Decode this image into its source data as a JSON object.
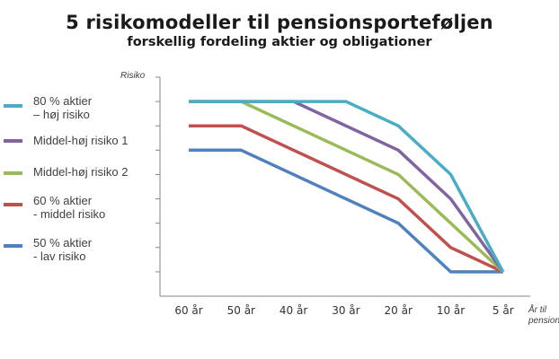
{
  "chart_data": {
    "type": "line",
    "title": "5 risikomodeller til pensionsporteføljen",
    "subtitle": "forskellig fordeling aktier og obligationer",
    "ylabel": "Risiko",
    "xlabel": [
      "År til",
      "pension"
    ],
    "categories": [
      "60 år",
      "50 år",
      "40 år",
      "30 år",
      "20 år",
      "10 år",
      "5 år"
    ],
    "ylim": [
      0,
      9
    ],
    "y_ticks": 9,
    "grid": false,
    "legend_position": "left",
    "series": [
      {
        "name": "80 % aktier\n – høj risiko",
        "color": "#4bacc6",
        "values": [
          8,
          8,
          8,
          8,
          7,
          5,
          1
        ]
      },
      {
        "name": "Middel-høj risiko 1",
        "color": "#8064a2",
        "values": [
          8,
          8,
          8,
          7,
          6,
          4,
          1
        ]
      },
      {
        "name": "Middel-høj risiko 2",
        "color": "#9bbb59",
        "values": [
          8,
          8,
          7,
          6,
          5,
          3,
          1
        ]
      },
      {
        "name": "60 % aktier\n - middel risiko",
        "color": "#c0504d",
        "values": [
          7,
          7,
          6,
          5,
          4,
          2,
          1
        ]
      },
      {
        "name": "50 % aktier\n - lav risiko",
        "color": "#4f81bd",
        "values": [
          6,
          6,
          5,
          4,
          3,
          1,
          1
        ]
      }
    ]
  }
}
